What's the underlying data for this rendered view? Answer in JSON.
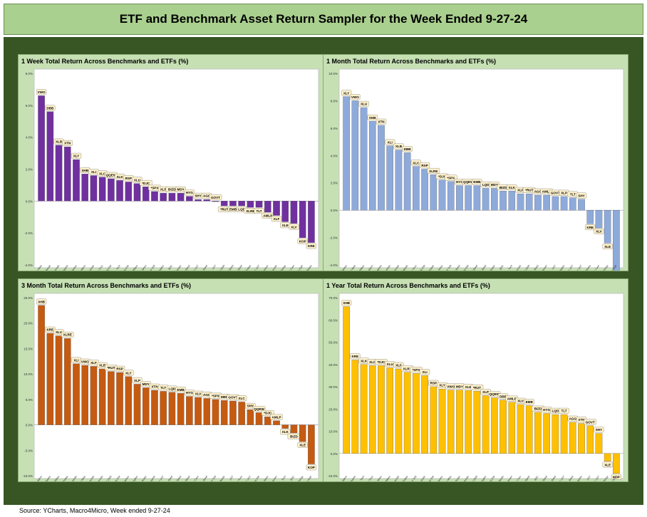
{
  "title": "ETF and Benchmark Asset Return Sampler for the Week Ended 9-27-24",
  "source": "Source: YCharts, Macro4Micro, Week ended 9-27-24",
  "chart_data": [
    {
      "type": "bar",
      "title": "1 Week Total Return Across Benchmarks and ETFs (%)",
      "color": "#7030a0",
      "ylim": [
        -4,
        8
      ],
      "yticks": [
        -4,
        -2,
        0,
        2,
        4,
        6,
        8
      ],
      "labels": [
        "VWO",
        "DBB",
        "XLB",
        "XTN",
        "XLY",
        "XHB",
        "XLI",
        "XLC",
        "QQEW",
        "XLK",
        "RSP",
        "XLU",
        "*DJC",
        "*SPX",
        "XLP",
        "BIZD",
        "MDY",
        "HYG",
        "SHY",
        "AGG",
        "GOVT",
        "*RUT",
        "EMB",
        "LQD",
        "XLRE",
        "TLT",
        "AMLP",
        "XLF",
        "XLE",
        "XLV",
        "KOP",
        "KRE"
      ],
      "categories": [
        "Emerging Mkts",
        "Base Metals",
        "Materials",
        "Transports",
        "Consumer Discretionary",
        "Homebuilders",
        "Industrials",
        "Communication Svcs",
        "NASDAQ 100 EW",
        "Tech",
        "S&P 500 EW",
        "Utilities",
        "Dow Jones",
        "S&P 500",
        "Consumer Staples",
        "BDC",
        "Midcaps",
        "HY Bond",
        "1-3Y UST",
        "Agg Bond",
        "UST",
        "Russell 2000",
        "EM Bond",
        "IG Bond",
        "Real Estate",
        "20+Y UST",
        "Midstream",
        "Financials",
        "Energy",
        "Health Care",
        "Oil & Gas E&P",
        "Regional Banks"
      ],
      "values": [
        6.6,
        5.6,
        3.5,
        3.4,
        2.6,
        1.7,
        1.6,
        1.5,
        1.4,
        1.3,
        1.2,
        1.1,
        0.9,
        0.6,
        0.5,
        0.5,
        0.5,
        0.3,
        0.1,
        0.1,
        0.0,
        -0.3,
        -0.3,
        -0.3,
        -0.4,
        -0.4,
        -0.7,
        -0.9,
        -1.3,
        -1.4,
        -2.3,
        -2.6
      ]
    },
    {
      "type": "bar",
      "title": "1 Month Total Return Across Benchmarks and ETFs (%)",
      "color": "#8eaadb",
      "ylim": [
        -4,
        10
      ],
      "yticks": [
        -4,
        -2,
        0,
        2,
        4,
        6,
        8,
        10
      ],
      "labels": [
        "XLY",
        "VWO",
        "XLU",
        "XHB",
        "XTN",
        "XLI",
        "XLB",
        "DBB",
        "XLC",
        "RSP",
        "XLRE",
        "*DJC",
        "*SPX",
        "HYG",
        "QQEW",
        "EMB",
        "LQD",
        "MDY",
        "BIZD",
        "XLK",
        "XLF",
        "*RUT",
        "AGG",
        "AMLP",
        "GOVT",
        "XLP",
        "TLT",
        "SHY",
        "KRE",
        "XLV",
        "XLE",
        "KOP"
      ],
      "categories": [
        "Consumer Discretionary",
        "Emerging Mkts",
        "Utilities",
        "Homebuilders",
        "Transports",
        "Industrials",
        "Materials",
        "Base Metals",
        "Communication Svcs",
        "S&P 500 EW",
        "Real Estate",
        "Dow Jones",
        "S&P 500",
        "HY Bond",
        "NASDAQ 100 EW",
        "EM Bond",
        "IG Bond",
        "Midcaps",
        "BDC",
        "Tech",
        "Financials",
        "Russell 2000",
        "Agg Bond",
        "Midstream",
        "UST",
        "Consumer Staples",
        "20+Y UST",
        "1-3Y UST",
        "Regional Banks",
        "Health Care",
        "Energy",
        "Oil & Gas E&P"
      ],
      "values": [
        8.3,
        8.0,
        7.5,
        6.5,
        6.2,
        4.7,
        4.4,
        4.2,
        3.2,
        3.0,
        2.6,
        2.2,
        2.1,
        1.8,
        1.8,
        1.8,
        1.6,
        1.6,
        1.4,
        1.4,
        1.2,
        1.2,
        1.1,
        1.1,
        1.0,
        1.0,
        0.9,
        0.8,
        -1.0,
        -1.3,
        -2.4,
        -4.5
      ]
    },
    {
      "type": "bar",
      "title": "3 Month Total Return Across Benchmarks and ETFs (%)",
      "color": "#c55a11",
      "ylim": [
        -10,
        25
      ],
      "yticks": [
        -10,
        -5,
        0,
        5,
        10,
        15,
        20,
        25
      ],
      "labels": [
        "XHB",
        "KRE",
        "XLU",
        "XLRE",
        "XLI",
        "VWO",
        "XLF",
        "XLB",
        "*RUT",
        "RSP",
        "XLY",
        "XLP",
        "MDY",
        "XTN",
        "TLT",
        "LQD",
        "EMB",
        "HYG",
        "XLV",
        "AGG",
        "*SPX",
        "DBB",
        "GOVT",
        "XLC",
        "SHY",
        "QQEW",
        "*DJC",
        "AMLP",
        "XLK",
        "BIZD",
        "XLE",
        "KOP"
      ],
      "categories": [
        "Homebuilders",
        "Regional Banks",
        "Utilities",
        "Real Estate",
        "Industrials",
        "Emerging Mkts",
        "Financials",
        "Materials",
        "Russell 2000",
        "S&P 500 EW",
        "Consumer Discretionary",
        "Consumer Staples",
        "Midcaps",
        "Transports",
        "20+Y UST",
        "IG Bond",
        "EM Bond",
        "HY Bond",
        "Health Care",
        "Agg Bond",
        "S&P 500",
        "Base Metals",
        "UST",
        "Communication Svcs",
        "1-3Y UST",
        "NASDAQ 100 EW",
        "Dow Jones",
        "Midstream",
        "Tech",
        "BDC",
        "Energy",
        "Oil & Gas E&P"
      ],
      "values": [
        23.5,
        18.0,
        17.5,
        17.0,
        12.0,
        11.7,
        11.5,
        11.0,
        10.5,
        10.3,
        9.5,
        8.0,
        7.3,
        6.8,
        6.6,
        6.4,
        6.2,
        5.6,
        5.4,
        5.2,
        5.0,
        4.8,
        4.7,
        4.5,
        3.0,
        2.4,
        1.6,
        0.8,
        -0.7,
        -1.6,
        -3.3,
        -7.7
      ]
    },
    {
      "type": "bar",
      "title": "1 Year Total Return Across Benchmarks and ETFs (%)",
      "color": "#ffc000",
      "ylim": [
        -10,
        70
      ],
      "yticks": [
        -10,
        0,
        10,
        20,
        30,
        40,
        50,
        60,
        70
      ],
      "labels": [
        "XHB",
        "KRE",
        "XLK",
        "XLC",
        "*DJC",
        "XLU",
        "XLF",
        "XLRE",
        "*SPX",
        "XLI",
        "RSP",
        "XLY",
        "VWO",
        "MDY",
        "XLB",
        "*RUT",
        "XLP",
        "QQEW",
        "DBB",
        "AMLP",
        "XLV",
        "EMB",
        "BIZD",
        "HYG",
        "LQD",
        "TLT",
        "AGG",
        "XTN",
        "GOVT",
        "SHY",
        "XLE",
        "KOP"
      ],
      "categories": [
        "Homebuilders",
        "Regional Banks",
        "Tech",
        "Communication Svcs",
        "Dow Jones",
        "Utilities",
        "Financials",
        "Real Estate",
        "S&P 500",
        "Industrials",
        "S&P 500 EW",
        "Consumer Discretionary",
        "Emerging Mkts",
        "Midcaps",
        "Materials",
        "Russell 2000",
        "Consumer Staples",
        "NASDAQ 100 EW",
        "Base Metals",
        "Midstream",
        "Health Care",
        "EM Bond",
        "BDC",
        "HY Bond",
        "IG Bond",
        "20+Y UST",
        "Agg Bond",
        "Transports",
        "UST",
        "1-3Y UST",
        "Energy",
        "Oil & Gas E&P"
      ],
      "values": [
        66.0,
        42.0,
        40.0,
        39.5,
        39.5,
        38.5,
        38.0,
        36.5,
        36.0,
        35.0,
        30.0,
        29.0,
        28.5,
        28.5,
        28.3,
        28.0,
        26.0,
        25.0,
        24.0,
        23.0,
        22.0,
        21.5,
        18.5,
        18.0,
        17.5,
        17.5,
        14.0,
        13.5,
        12.5,
        9.0,
        -3.5,
        -9.0
      ]
    }
  ]
}
